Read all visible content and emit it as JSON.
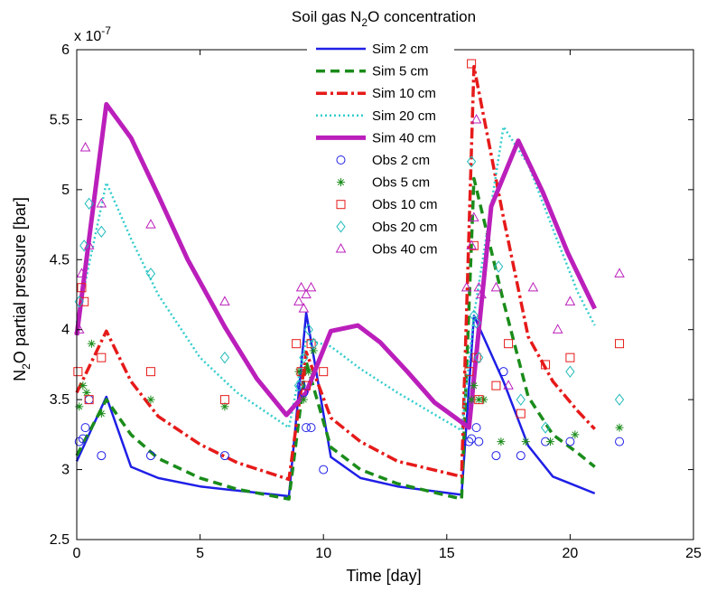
{
  "chart_data": {
    "type": "line",
    "title_prefix": "Soil gas N",
    "title_sub": "2",
    "title_suffix": "O concentration",
    "xlabel": "Time [day]",
    "ylabel_prefix": "N",
    "ylabel_sub": "2",
    "ylabel_suffix": "O partial pressure [bar]",
    "exponent_prefix": "x 10",
    "exponent_sup": "-7",
    "xlim": [
      0,
      25
    ],
    "ylim": [
      2.5,
      6
    ],
    "xticks": [
      "0",
      "5",
      "10",
      "15",
      "20",
      "25"
    ],
    "yticks": [
      "2.5",
      "3",
      "3.5",
      "4",
      "4.5",
      "5",
      "5.5",
      "6"
    ],
    "grid": false,
    "legend_position": "top-center",
    "series": [
      {
        "name": "Sim 2 cm",
        "kind": "line",
        "color": "#1f1fe6",
        "dash": "",
        "width": 2.5,
        "x": [
          0,
          1.2,
          2.2,
          3.3,
          5,
          6.5,
          8.6,
          9.3,
          10.3,
          11.5,
          13,
          15.6,
          16.1,
          17.3,
          18.3,
          19.3,
          20.3,
          21
        ],
        "y": [
          3.06,
          3.52,
          3.02,
          2.94,
          2.88,
          2.85,
          2.81,
          4.12,
          3.09,
          2.94,
          2.88,
          2.82,
          4.1,
          3.63,
          3.17,
          2.95,
          2.88,
          2.83
        ]
      },
      {
        "name": "Sim 5 cm",
        "kind": "line",
        "color": "#1a8c1a",
        "dash": "10,6",
        "width": 3.5,
        "x": [
          0,
          1.2,
          2.2,
          3.3,
          5,
          6.5,
          8.6,
          9.3,
          10.3,
          11.5,
          13,
          15.6,
          16.1,
          17.3,
          18.3,
          19.3,
          20.3,
          21
        ],
        "y": [
          3.1,
          3.5,
          3.25,
          3.08,
          2.94,
          2.86,
          2.79,
          3.77,
          3.16,
          3.0,
          2.9,
          2.79,
          5.08,
          4.2,
          3.52,
          3.25,
          3.12,
          3.02
        ]
      },
      {
        "name": "Sim 10 cm",
        "kind": "line",
        "color": "#e61a1a",
        "dash": "12,4,3,4",
        "width": 3.5,
        "x": [
          0,
          1.2,
          2.2,
          3.3,
          5,
          6.5,
          8.6,
          9.3,
          10.3,
          11.5,
          13,
          15.6,
          16.1,
          17.3,
          18.3,
          19.3,
          20.3,
          21
        ],
        "y": [
          3.55,
          3.99,
          3.63,
          3.38,
          3.18,
          3.05,
          2.93,
          3.84,
          3.37,
          3.2,
          3.06,
          2.95,
          5.88,
          4.8,
          3.95,
          3.63,
          3.42,
          3.29
        ]
      },
      {
        "name": "Sim 20 cm",
        "kind": "line",
        "color": "#33cccc",
        "dash": "2,3",
        "width": 2.5,
        "x": [
          0,
          1.2,
          2.2,
          3.3,
          5,
          6.5,
          8.6,
          9.3,
          10.3,
          11.5,
          13,
          15.6,
          16.1,
          17.3,
          18.3,
          19.3,
          20.3,
          21
        ],
        "y": [
          4.05,
          5.05,
          4.65,
          4.25,
          3.8,
          3.55,
          3.3,
          3.93,
          3.88,
          3.72,
          3.55,
          3.28,
          4.1,
          5.45,
          5.18,
          4.72,
          4.27,
          4.03
        ]
      },
      {
        "name": "Sim 40 cm",
        "kind": "line",
        "color": "#bb1fbb",
        "dash": "",
        "width": 5,
        "x": [
          0,
          1.2,
          2.2,
          3.3,
          4.5,
          6,
          7.3,
          8.5,
          9.3,
          10.3,
          11.4,
          12.3,
          13.4,
          14.5,
          15.9,
          16.8,
          17.9,
          18.9,
          19.9,
          21
        ],
        "y": [
          3.96,
          5.61,
          5.37,
          4.96,
          4.5,
          4.02,
          3.65,
          3.39,
          3.55,
          3.99,
          4.03,
          3.91,
          3.7,
          3.48,
          3.3,
          4.88,
          5.35,
          4.98,
          4.55,
          4.15
        ]
      },
      {
        "name": "Obs 2 cm",
        "kind": "marker",
        "marker": "circle",
        "color": "#1f1fe6",
        "x": [
          0.1,
          0.25,
          0.35,
          0.5,
          1.0,
          3.0,
          6.0,
          9.1,
          9.2,
          9.3,
          9.5,
          10.0,
          15.9,
          16.0,
          16.2,
          16.3,
          17.0,
          17.3,
          18.0,
          19.0,
          20.0,
          22.0
        ],
        "y": [
          3.2,
          3.22,
          3.3,
          3.5,
          3.1,
          3.1,
          3.1,
          3.6,
          3.55,
          3.3,
          3.3,
          3.0,
          3.2,
          3.22,
          3.3,
          3.2,
          3.1,
          3.7,
          3.1,
          3.2,
          3.2,
          3.2
        ]
      },
      {
        "name": "Obs 5 cm",
        "kind": "marker",
        "marker": "star",
        "color": "#1a8c1a",
        "x": [
          0.1,
          0.25,
          0.4,
          0.6,
          1.0,
          3.0,
          6.0,
          9.0,
          9.2,
          9.4,
          9.6,
          16.0,
          16.1,
          16.3,
          16.5,
          17.2,
          18.2,
          19.2,
          20.2,
          22.0
        ],
        "y": [
          3.45,
          3.6,
          3.55,
          3.9,
          3.4,
          3.5,
          3.45,
          3.7,
          3.5,
          3.7,
          3.85,
          3.5,
          3.6,
          3.5,
          3.5,
          3.2,
          3.2,
          3.2,
          3.25,
          3.3
        ]
      },
      {
        "name": "Obs 10 cm",
        "kind": "marker",
        "marker": "square",
        "color": "#e61a1a",
        "x": [
          0.05,
          0.2,
          0.3,
          0.5,
          1.0,
          3.0,
          6.0,
          8.9,
          9.1,
          9.3,
          9.5,
          10.0,
          15.9,
          16.0,
          16.1,
          16.2,
          16.3,
          17.0,
          17.5,
          18.0,
          19.0,
          20.0,
          22.0
        ],
        "y": [
          3.7,
          4.3,
          4.2,
          3.5,
          3.8,
          3.7,
          3.5,
          3.9,
          3.7,
          3.6,
          3.9,
          3.7,
          3.7,
          5.9,
          4.6,
          3.8,
          3.5,
          3.6,
          3.9,
          3.4,
          3.75,
          3.8,
          3.9
        ]
      },
      {
        "name": "Obs 20 cm",
        "kind": "marker",
        "marker": "diamond",
        "color": "#22bbbb",
        "x": [
          0.1,
          0.3,
          0.5,
          1.0,
          3.0,
          6.0,
          9.0,
          9.2,
          9.4,
          9.6,
          16.0,
          16.1,
          16.2,
          16.3,
          17.1,
          18.0,
          19.0,
          20.0,
          22.0
        ],
        "y": [
          4.2,
          4.6,
          4.9,
          4.7,
          4.4,
          3.8,
          3.6,
          3.8,
          4.0,
          3.9,
          5.2,
          4.1,
          4.05,
          3.8,
          4.45,
          3.5,
          3.3,
          3.7,
          3.5
        ]
      },
      {
        "name": "Obs 40 cm",
        "kind": "marker",
        "marker": "triangle",
        "color": "#bb1fbb",
        "x": [
          0.1,
          0.2,
          0.35,
          0.5,
          1.0,
          3.0,
          6.0,
          9.0,
          9.1,
          9.2,
          9.3,
          9.5,
          15.8,
          16.0,
          16.1,
          16.2,
          16.3,
          16.4,
          17.0,
          17.5,
          18.5,
          19.5,
          20.0,
          22.0
        ],
        "y": [
          4.0,
          4.4,
          5.3,
          4.6,
          4.9,
          4.75,
          4.2,
          4.2,
          4.3,
          4.15,
          4.25,
          4.3,
          4.3,
          4.6,
          4.8,
          5.5,
          4.3,
          4.25,
          4.3,
          3.6,
          4.3,
          4.0,
          4.2,
          4.4
        ]
      }
    ]
  }
}
